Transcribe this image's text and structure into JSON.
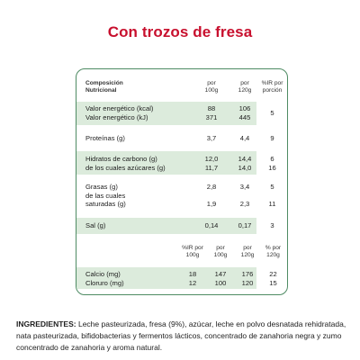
{
  "title": "Con trozos de fresa",
  "table": {
    "head": {
      "name": [
        "Composición",
        "Nutricional"
      ],
      "col1": [
        "por",
        "100g"
      ],
      "col2": [
        "por",
        "120g"
      ],
      "col3": [
        "%IR por",
        "porción"
      ]
    },
    "rows": [
      {
        "name": [
          "Valor energético (kcal)",
          "Valor energético (kJ)"
        ],
        "v1": [
          "88",
          "371"
        ],
        "v2": [
          "106",
          "445"
        ],
        "v3": [
          "",
          "5"
        ]
      },
      {
        "name": [
          "Proteínas (g)"
        ],
        "v1": [
          "3,7"
        ],
        "v2": [
          "4,4"
        ],
        "v3": [
          "9"
        ]
      },
      {
        "name": [
          "Hidratos de carbono (g)",
          "de los cuales azúcares (g)"
        ],
        "v1": [
          "12,0",
          "11,7"
        ],
        "v2": [
          "14,4",
          "14,0"
        ],
        "v3": [
          "6",
          "16"
        ]
      },
      {
        "name": [
          "Grasas (g)",
          "de las cuales",
          "saturadas (g)"
        ],
        "v1": [
          "2,8",
          "",
          "1,9"
        ],
        "v2": [
          "3,4",
          "",
          "2,3"
        ],
        "v3": [
          "5",
          "",
          "11"
        ]
      },
      {
        "name": [
          "Sal (g)"
        ],
        "v1": [
          "0,14"
        ],
        "v2": [
          "0,17"
        ],
        "v3": [
          "3"
        ]
      }
    ],
    "mineral_head": {
      "c1": [
        "%IR por",
        "100g"
      ],
      "c2": [
        "por",
        "100g"
      ],
      "c3": [
        "por",
        "120g"
      ],
      "c4": [
        "% por",
        "120g"
      ]
    },
    "minerals": [
      {
        "name": "Calcio (mg)",
        "c1": "18",
        "c2": "147",
        "c3": "176",
        "c4": "22"
      },
      {
        "name": "Cloruro (mg)",
        "c1": "12",
        "c2": "100",
        "c3": "120",
        "c4": "15"
      }
    ]
  },
  "ingredients": {
    "heading": "INGREDIENTES:",
    "text": "Leche pasteurizada, fresa (9%), azúcar, leche en polvo desnatada rehidratada, nata pasteurizada, bifidobacterias y fermentos lácticos, concentrado de zanahoria negra y zumo concentrado de zanahoria y aroma natural."
  }
}
